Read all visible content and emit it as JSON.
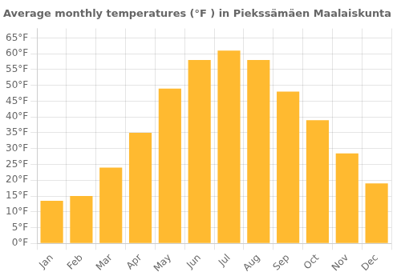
{
  "chart_data": {
    "type": "bar",
    "title": "Average monthly temperatures (°F ) in Piekssämäen Maalaiskunta",
    "categories": [
      "Jan",
      "Feb",
      "Mar",
      "Apr",
      "May",
      "Jun",
      "Jul",
      "Aug",
      "Sep",
      "Oct",
      "Nov",
      "Dec"
    ],
    "values": [
      13.5,
      15.0,
      24.0,
      35.0,
      49.0,
      58.0,
      61.0,
      58.0,
      48.0,
      39.0,
      28.5,
      19.0
    ],
    "color": "#FFBA30",
    "ylim": [
      0,
      68
    ],
    "yticks": [
      {
        "value": 0,
        "label": "0°F"
      },
      {
        "value": 5,
        "label": "5°F"
      },
      {
        "value": 10,
        "label": "10°F"
      },
      {
        "value": 15,
        "label": "15°F"
      },
      {
        "value": 20,
        "label": "20°F"
      },
      {
        "value": 25,
        "label": "25°F"
      },
      {
        "value": 30,
        "label": "30°F"
      },
      {
        "value": 35,
        "label": "35°F"
      },
      {
        "value": 40,
        "label": "40°F"
      },
      {
        "value": 45,
        "label": "45°F"
      },
      {
        "value": 50,
        "label": "50°F"
      },
      {
        "value": 55,
        "label": "55°F"
      },
      {
        "value": 60,
        "label": "60°F"
      },
      {
        "value": 65,
        "label": "65°F"
      }
    ],
    "grid": true
  }
}
